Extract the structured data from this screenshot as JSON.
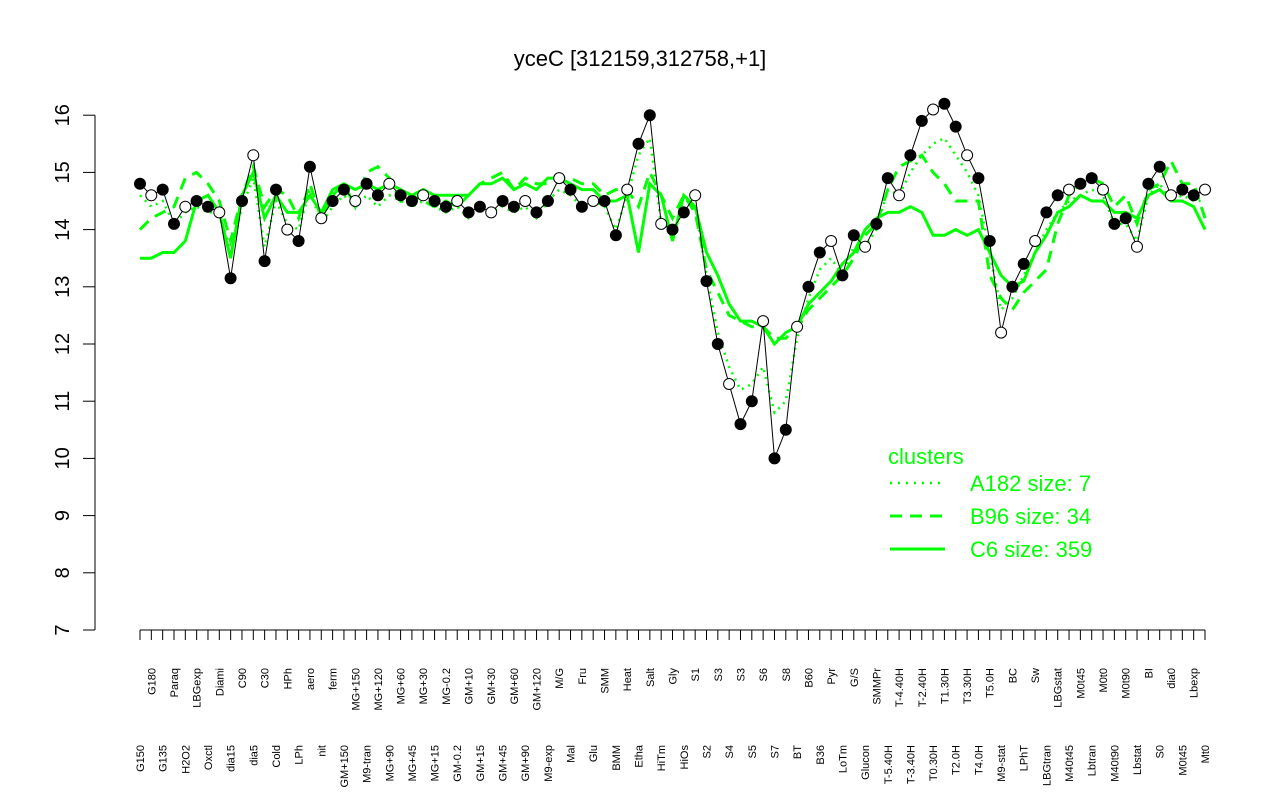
{
  "colors": {
    "cluster": "#00ff00",
    "points": "#000000",
    "open_point_fill": "#ffffff"
  },
  "chart_data": {
    "type": "line",
    "title": "yceC [312159,312758,+1]",
    "xlabel": "",
    "ylabel": "",
    "ylim": [
      7,
      16.4
    ],
    "yticks": [
      7,
      8,
      9,
      10,
      11,
      12,
      13,
      14,
      15,
      16
    ],
    "x_tick_labels": [
      "G150",
      "G180",
      "G135",
      "Paraq",
      "H2O2",
      "LBGexp",
      "Oxctl",
      "Diami",
      "dia15",
      "C90",
      "dia5",
      "C30",
      "Cold",
      "HPh",
      "LPh",
      "aero",
      "nit",
      "ferm",
      "GM+150",
      "MG+150",
      "M9-tran",
      "MG+120",
      "MG+90",
      "MG+60",
      "MG+45",
      "MG+30",
      "MG+15",
      "MG-0.2",
      "GM-0.2",
      "GM+10",
      "GM+15",
      "GM+30",
      "GM+45",
      "GM+60",
      "GM+90",
      "GM+120",
      "M9-exp",
      "M/G",
      "Mal",
      "Fru",
      "Glu",
      "SMM",
      "BMM",
      "Heat",
      "Etha",
      "Salt",
      "HiTm",
      "Gly",
      "HiOs",
      "S1",
      "S2",
      "S3",
      "S4",
      "S3",
      "S5",
      "S6",
      "S7",
      "S8",
      "BT",
      "B60",
      "B36",
      "Pyr",
      "LoTm",
      "G/S",
      "Glucon",
      "SMMPr",
      "T-5.40H",
      "T-4.40H",
      "T-3.40H",
      "T-2.40H",
      "T0.30H",
      "T1.30H",
      "T2.0H",
      "T3.30H",
      "T4.0H",
      "T5.0H",
      "M9-stat",
      "BC",
      "LPhT",
      "Sw",
      "LBGtran",
      "LBGstat",
      "M40t45",
      "M0t45",
      "Lbtran",
      "M0t0",
      "M40t90",
      "M0t90",
      "Lbstat",
      "BI",
      "S0",
      "dia0",
      "M0t45",
      "Lbexp",
      "Mt0"
    ],
    "series": [
      {
        "name": "",
        "style": "points",
        "values": [
          14.8,
          14.6,
          14.7,
          14.1,
          14.4,
          14.5,
          14.4,
          14.3,
          13.15,
          14.5,
          15.3,
          13.45,
          14.7,
          14.0,
          13.8,
          15.1,
          14.2,
          14.5,
          14.7,
          14.5,
          14.8,
          14.6,
          14.8,
          14.6,
          14.5,
          14.6,
          14.5,
          14.4,
          14.5,
          14.3,
          14.4,
          14.3,
          14.5,
          14.4,
          14.5,
          14.3,
          14.5,
          14.9,
          14.7,
          14.4,
          14.5,
          14.5,
          13.9,
          14.7,
          15.5,
          16.0,
          14.1,
          14.0,
          14.3,
          14.6,
          13.1,
          12.0,
          11.3,
          10.6,
          11.0,
          12.4,
          10.0,
          10.5,
          12.3,
          13.0,
          13.6,
          13.8,
          13.2,
          13.9,
          13.7,
          14.1,
          14.9,
          14.6,
          15.3,
          15.9,
          16.1,
          16.2,
          15.8,
          15.3,
          14.9,
          13.8,
          12.2,
          13.0,
          13.4,
          13.8,
          14.3,
          14.6,
          14.7,
          14.8,
          14.9,
          14.7,
          14.1,
          14.2,
          13.7,
          14.8,
          15.1,
          14.6,
          14.7,
          14.6,
          14.7
        ]
      },
      {
        "name": "",
        "style": "green-solid",
        "values": [
          13.5,
          13.5,
          13.6,
          13.6,
          13.8,
          14.5,
          14.6,
          14.3,
          13.5,
          14.6,
          15.0,
          14.2,
          14.6,
          14.3,
          14.3,
          14.6,
          14.3,
          14.7,
          14.8,
          14.7,
          14.8,
          14.7,
          14.8,
          14.7,
          14.6,
          14.7,
          14.6,
          14.6,
          14.6,
          14.6,
          14.8,
          14.8,
          14.9,
          14.7,
          14.8,
          14.7,
          14.9,
          14.9,
          14.8,
          14.7,
          14.7,
          14.5,
          14.5,
          14.6,
          13.6,
          14.8,
          14.6,
          13.8,
          14.6,
          14.4,
          13.6,
          13.2,
          12.7,
          12.4,
          12.4,
          12.3,
          12.0,
          12.2,
          12.3,
          12.7,
          12.9,
          13.1,
          13.4,
          13.6,
          14.0,
          14.2,
          14.3,
          14.3,
          14.4,
          14.3,
          13.9,
          13.9,
          14.0,
          13.9,
          14.0,
          13.6,
          13.2,
          13.0,
          13.1,
          13.6,
          13.9,
          14.3,
          14.4,
          14.6,
          14.5,
          14.5,
          14.3,
          14.3,
          14.2,
          14.6,
          14.7,
          14.5,
          14.5,
          14.4,
          14.0
        ]
      },
      {
        "name": "",
        "style": "green-dashed",
        "values": [
          14.0,
          14.2,
          14.3,
          14.4,
          14.9,
          15.0,
          14.8,
          14.5,
          13.8,
          14.6,
          15.1,
          14.4,
          14.7,
          14.6,
          14.2,
          14.8,
          14.2,
          14.6,
          14.8,
          14.4,
          15.0,
          15.1,
          14.9,
          14.5,
          14.6,
          14.5,
          14.4,
          14.5,
          14.4,
          14.6,
          14.8,
          14.9,
          15.0,
          14.7,
          14.9,
          14.8,
          14.8,
          14.9,
          14.9,
          14.8,
          14.8,
          14.6,
          14.7,
          14.7,
          14.4,
          15.0,
          14.6,
          14.2,
          14.6,
          14.3,
          13.3,
          12.9,
          12.5,
          12.4,
          12.3,
          12.3,
          12.1,
          12.1,
          12.3,
          12.6,
          12.8,
          13.0,
          13.2,
          13.5,
          13.9,
          14.1,
          14.7,
          15.1,
          15.2,
          15.3,
          15.0,
          14.8,
          14.5,
          14.5,
          14.5,
          13.2,
          12.8,
          12.6,
          12.9,
          13.1,
          13.3,
          14.1,
          14.6,
          14.8,
          14.9,
          14.8,
          14.4,
          14.6,
          14.1,
          14.7,
          14.8,
          15.2,
          14.8,
          14.8,
          14.2
        ]
      },
      {
        "name": "",
        "style": "green-dotted",
        "values": [
          14.6,
          14.4,
          14.5,
          14.1,
          14.3,
          14.4,
          14.3,
          14.3,
          13.6,
          14.4,
          14.9,
          13.7,
          14.5,
          14.1,
          14.0,
          14.7,
          14.1,
          14.4,
          14.6,
          14.4,
          14.6,
          14.4,
          14.6,
          14.5,
          14.4,
          14.5,
          14.4,
          14.3,
          14.4,
          14.2,
          14.4,
          14.3,
          14.4,
          14.3,
          14.4,
          14.2,
          14.5,
          14.7,
          14.6,
          14.4,
          14.5,
          14.4,
          14.0,
          14.6,
          15.3,
          15.6,
          14.1,
          14.0,
          14.3,
          14.4,
          13.2,
          12.2,
          11.6,
          11.2,
          11.3,
          11.6,
          10.8,
          11.0,
          12.1,
          12.8,
          13.3,
          13.5,
          13.2,
          13.7,
          13.7,
          14.0,
          14.7,
          14.6,
          15.0,
          15.3,
          15.5,
          15.6,
          15.3,
          15.0,
          14.6,
          13.6,
          12.6,
          12.8,
          13.2,
          13.6,
          14.0,
          14.3,
          14.5,
          14.6,
          14.7,
          14.6,
          14.1,
          14.1,
          13.8,
          14.6,
          14.8,
          14.5,
          14.6,
          14.5,
          14.5
        ]
      }
    ],
    "legend": {
      "title": "clusters",
      "placement": "bottom-right",
      "entries": [
        {
          "label": "A182 size: 7",
          "style": "dotted"
        },
        {
          "label": "B96 size: 34",
          "style": "dashed"
        },
        {
          "label": "C6 size: 359",
          "style": "solid"
        }
      ]
    }
  }
}
